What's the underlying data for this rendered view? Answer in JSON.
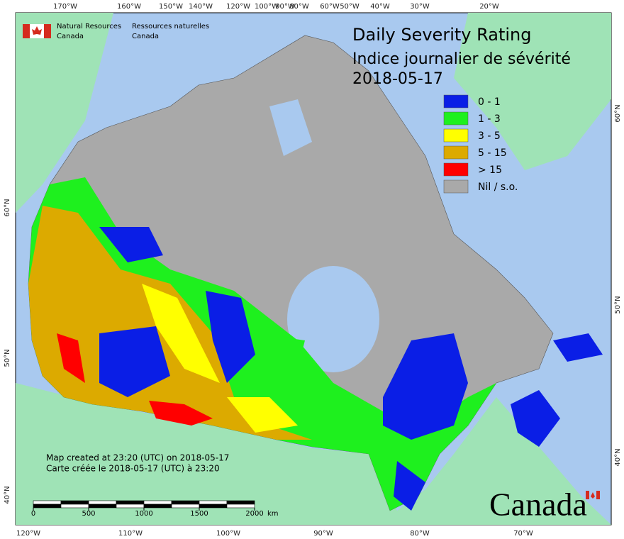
{
  "header": {
    "en_line1": "Natural Resources",
    "en_line2": "Canada",
    "fr_line1": "Ressources naturelles",
    "fr_line2": "Canada"
  },
  "title": {
    "en": "Daily Severity Rating",
    "fr": "Indice journalier de sévérité",
    "date": "2018-05-17"
  },
  "legend": [
    {
      "label": "0 - 1",
      "color": "#0a1ee6"
    },
    {
      "label": "1 - 3",
      "color": "#1ef01e"
    },
    {
      "label": "3 - 5",
      "color": "#ffff00"
    },
    {
      "label": "5 - 15",
      "color": "#dcaa00"
    },
    {
      "label": "> 15",
      "color": "#ff0000"
    },
    {
      "label": "Nil / s.o.",
      "color": "#a9a9a9"
    }
  ],
  "graticule": {
    "top": [
      "170°W",
      "160°W",
      "150°W",
      "140°W",
      "120°W",
      "100°W",
      "90°W",
      "80°W",
      "60°W",
      "50°W",
      "40°W",
      "30°W",
      "20°W"
    ],
    "bottom": [
      "120°W",
      "110°W",
      "100°W",
      "90°W",
      "80°W",
      "70°W"
    ],
    "left": [
      "60°N",
      "50°N",
      "40°N"
    ],
    "right": [
      "60°N",
      "50°N",
      "40°N"
    ]
  },
  "notes": [
    "Map created at 23:20 (UTC) on 2018-05-17",
    "Carte créée le 2018-05-17 (UTC) à 23:20"
  ],
  "scale": {
    "ticks": [
      0,
      500,
      1000,
      1500,
      2000
    ],
    "unit": "km"
  },
  "wordmark": "Canada"
}
